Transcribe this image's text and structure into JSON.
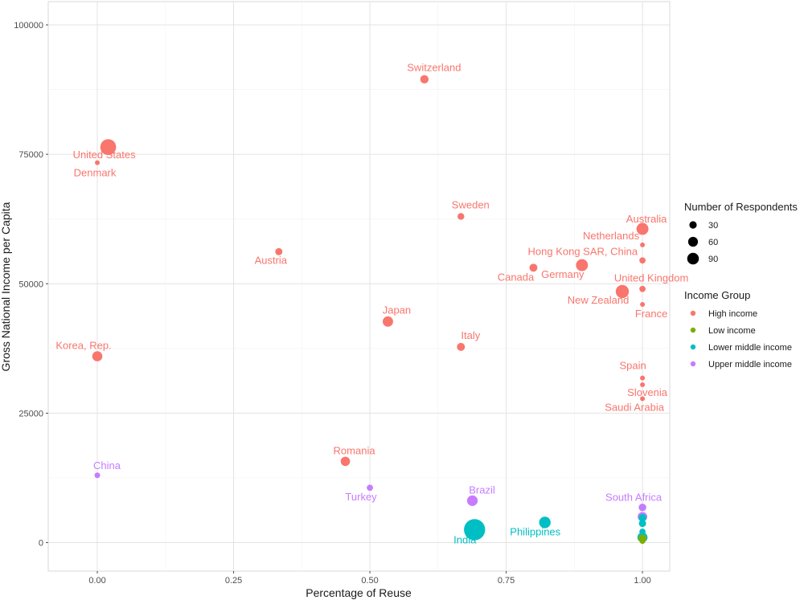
{
  "chart_data": {
    "type": "scatter",
    "xlabel": "Percentage of Reuse",
    "ylabel": "Gross National Income per Capita",
    "xlim": [
      -0.09,
      1.05
    ],
    "ylim": [
      -5500,
      104500
    ],
    "x_ticks": [
      0,
      0.25,
      0.5,
      0.75,
      1
    ],
    "x_tick_labels": [
      "0.00",
      "0.25",
      "0.50",
      "0.75",
      "1.00"
    ],
    "y_ticks": [
      0,
      25000,
      50000,
      75000,
      100000
    ],
    "y_tick_labels": [
      "0",
      "25000",
      "50000",
      "75000",
      "100000"
    ],
    "grid": true,
    "legend_position": "right",
    "size_legend": {
      "title": "Number of Respondents",
      "entries": [
        {
          "label": "30",
          "value": 30
        },
        {
          "label": "60",
          "value": 60
        },
        {
          "label": "90",
          "value": 90
        }
      ]
    },
    "color_legend": {
      "title": "Income Group",
      "entries": [
        {
          "label": "High income",
          "color": "#F8766D"
        },
        {
          "label": "Low income",
          "color": "#7CAE00"
        },
        {
          "label": "Lower middle income",
          "color": "#00BFC4"
        },
        {
          "label": "Upper middle income",
          "color": "#C77CFF"
        }
      ]
    },
    "points": [
      {
        "x": 0.6,
        "y": 89500,
        "size": 8,
        "group": "High income",
        "label": "Switzerland"
      },
      {
        "x": 0.02,
        "y": 76400,
        "size": 45,
        "group": "High income",
        "label": "United States"
      },
      {
        "x": 0.0,
        "y": 73400,
        "size": 1,
        "group": "High income",
        "label": "Denmark"
      },
      {
        "x": 0.667,
        "y": 63000,
        "size": 4,
        "group": "High income",
        "label": "Sweden"
      },
      {
        "x": 1.0,
        "y": 60600,
        "size": 22,
        "group": "High income",
        "label": "Australia"
      },
      {
        "x": 1.0,
        "y": 57500,
        "size": 1,
        "group": "High income",
        "label": "Netherlands"
      },
      {
        "x": 0.333,
        "y": 56200,
        "size": 5,
        "group": "High income",
        "label": "Austria"
      },
      {
        "x": 1.0,
        "y": 54500,
        "size": 3,
        "group": "High income",
        "label": "Hong Kong SAR, China"
      },
      {
        "x": 0.889,
        "y": 53600,
        "size": 22,
        "group": "High income",
        "label": "Germany"
      },
      {
        "x": 0.8,
        "y": 53100,
        "size": 7,
        "group": "High income",
        "label": "Canada"
      },
      {
        "x": 1.0,
        "y": 49000,
        "size": 3,
        "group": "High income",
        "label": "United Kingdom"
      },
      {
        "x": 0.963,
        "y": 48500,
        "size": 28,
        "group": "High income",
        "label": "New Zealand"
      },
      {
        "x": 1.0,
        "y": 46000,
        "size": 1,
        "group": "High income",
        "label": "France"
      },
      {
        "x": 0.533,
        "y": 42700,
        "size": 15,
        "group": "High income",
        "label": "Japan"
      },
      {
        "x": 0.667,
        "y": 37800,
        "size": 7,
        "group": "High income",
        "label": "Italy"
      },
      {
        "x": 0.0,
        "y": 36000,
        "size": 14,
        "group": "High income",
        "label": "Korea, Rep."
      },
      {
        "x": 1.0,
        "y": 31800,
        "size": 1,
        "group": "High income",
        "label": "Spain"
      },
      {
        "x": 1.0,
        "y": 30500,
        "size": 1,
        "group": "High income",
        "label": "Slovenia"
      },
      {
        "x": 1.0,
        "y": 27800,
        "size": 1,
        "group": "High income",
        "label": "Saudi Arabia"
      },
      {
        "x": 0.455,
        "y": 15700,
        "size": 11,
        "group": "High income",
        "label": "Romania"
      },
      {
        "x": 0.0,
        "y": 13000,
        "size": 2,
        "group": "Upper middle income",
        "label": "China"
      },
      {
        "x": 0.5,
        "y": 10600,
        "size": 3,
        "group": "Upper middle income",
        "label": "Turkey"
      },
      {
        "x": 0.688,
        "y": 8100,
        "size": 16,
        "group": "Upper middle income",
        "label": "Brazil"
      },
      {
        "x": 1.0,
        "y": 6800,
        "size": 6,
        "group": "Upper middle income",
        "label": "South Africa"
      },
      {
        "x": 1.0,
        "y": 5000,
        "size": 12,
        "group": "Upper middle income",
        "label": ""
      },
      {
        "x": 1.0,
        "y": 4800,
        "size": 6,
        "group": "Lower middle income",
        "label": ""
      },
      {
        "x": 1.0,
        "y": 3700,
        "size": 5,
        "group": "Lower middle income",
        "label": ""
      },
      {
        "x": 0.821,
        "y": 3900,
        "size": 20,
        "group": "Lower middle income",
        "label": "Philippines"
      },
      {
        "x": 0.692,
        "y": 2500,
        "size": 90,
        "group": "Lower middle income",
        "label": "India"
      },
      {
        "x": 1.0,
        "y": 2100,
        "size": 3,
        "group": "Lower middle income",
        "label": ""
      },
      {
        "x": 1.0,
        "y": 1000,
        "size": 14,
        "group": "Lower middle income",
        "label": ""
      },
      {
        "x": 1.0,
        "y": 800,
        "size": 8,
        "group": "Low income",
        "label": ""
      },
      {
        "x": 1.0,
        "y": 300,
        "size": 2,
        "group": "Low income",
        "label": ""
      }
    ]
  }
}
